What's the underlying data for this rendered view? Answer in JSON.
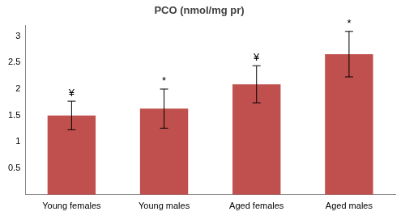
{
  "chart_data": {
    "type": "bar",
    "title": "PCO (nmol/mg pr)",
    "categories": [
      "Young females",
      "Young males",
      "Aged females",
      "Aged males"
    ],
    "values": [
      1.5,
      1.63,
      2.09,
      2.66
    ],
    "errors": [
      0.27,
      0.37,
      0.35,
      0.43
    ],
    "annotations": [
      "¥",
      "*",
      "¥",
      "*"
    ],
    "color": "#c0504d",
    "ylim": [
      0,
      3.2
    ],
    "yticks": [
      0.5,
      1,
      1.5,
      2,
      2.5,
      3
    ],
    "grid": false
  }
}
